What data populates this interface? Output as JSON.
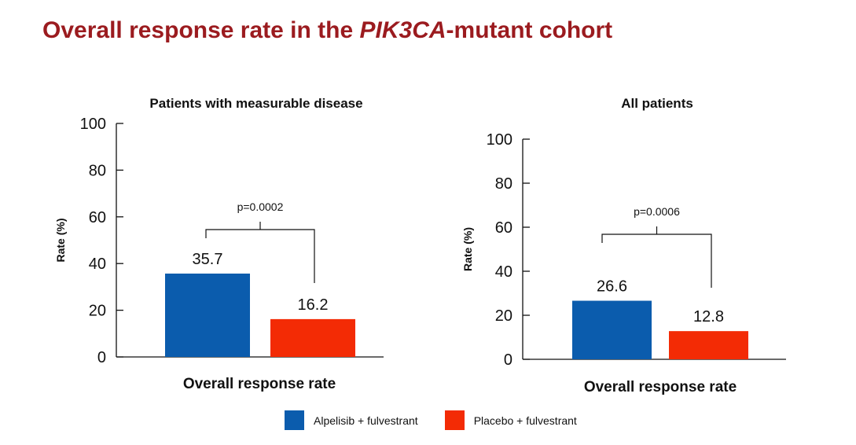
{
  "slide": {
    "title_prefix": "Overall response rate in the ",
    "title_italic": "PIK3CA",
    "title_suffix": "-mutant cohort"
  },
  "colors": {
    "title": "#9b1b1f",
    "alpelisib": "#0b5cad",
    "placebo": "#f32b05"
  },
  "legend": {
    "items": [
      {
        "label": "Alpelisib + fulvestrant",
        "color": "#0b5cad"
      },
      {
        "label": "Placebo + fulvestrant",
        "color": "#f32b05"
      }
    ]
  },
  "chart_data": [
    {
      "type": "bar",
      "title": "Patients with measurable disease",
      "xlabel": "Overall response rate",
      "ylabel": "Rate (%)",
      "ylim": [
        0,
        100
      ],
      "yticks": [
        0,
        20,
        40,
        60,
        80,
        100
      ],
      "categories": [
        "Overall response rate"
      ],
      "series": [
        {
          "name": "Alpelisib + fulvestrant",
          "values": [
            35.7
          ],
          "label": "35.7"
        },
        {
          "name": "Placebo + fulvestrant",
          "values": [
            16.2
          ],
          "label": "16.2"
        }
      ],
      "annotation": "p=0.0002",
      "grid": false
    },
    {
      "type": "bar",
      "title": "All patients",
      "xlabel": "Overall response rate",
      "ylabel": "Rate (%)",
      "ylim": [
        0,
        100
      ],
      "yticks": [
        0,
        20,
        40,
        60,
        80,
        100
      ],
      "categories": [
        "Overall response rate"
      ],
      "series": [
        {
          "name": "Alpelisib + fulvestrant",
          "values": [
            26.6
          ],
          "label": "26.6"
        },
        {
          "name": "Placebo + fulvestrant",
          "values": [
            12.8
          ],
          "label": "12.8"
        }
      ],
      "annotation": "p=0.0006",
      "grid": false
    }
  ]
}
